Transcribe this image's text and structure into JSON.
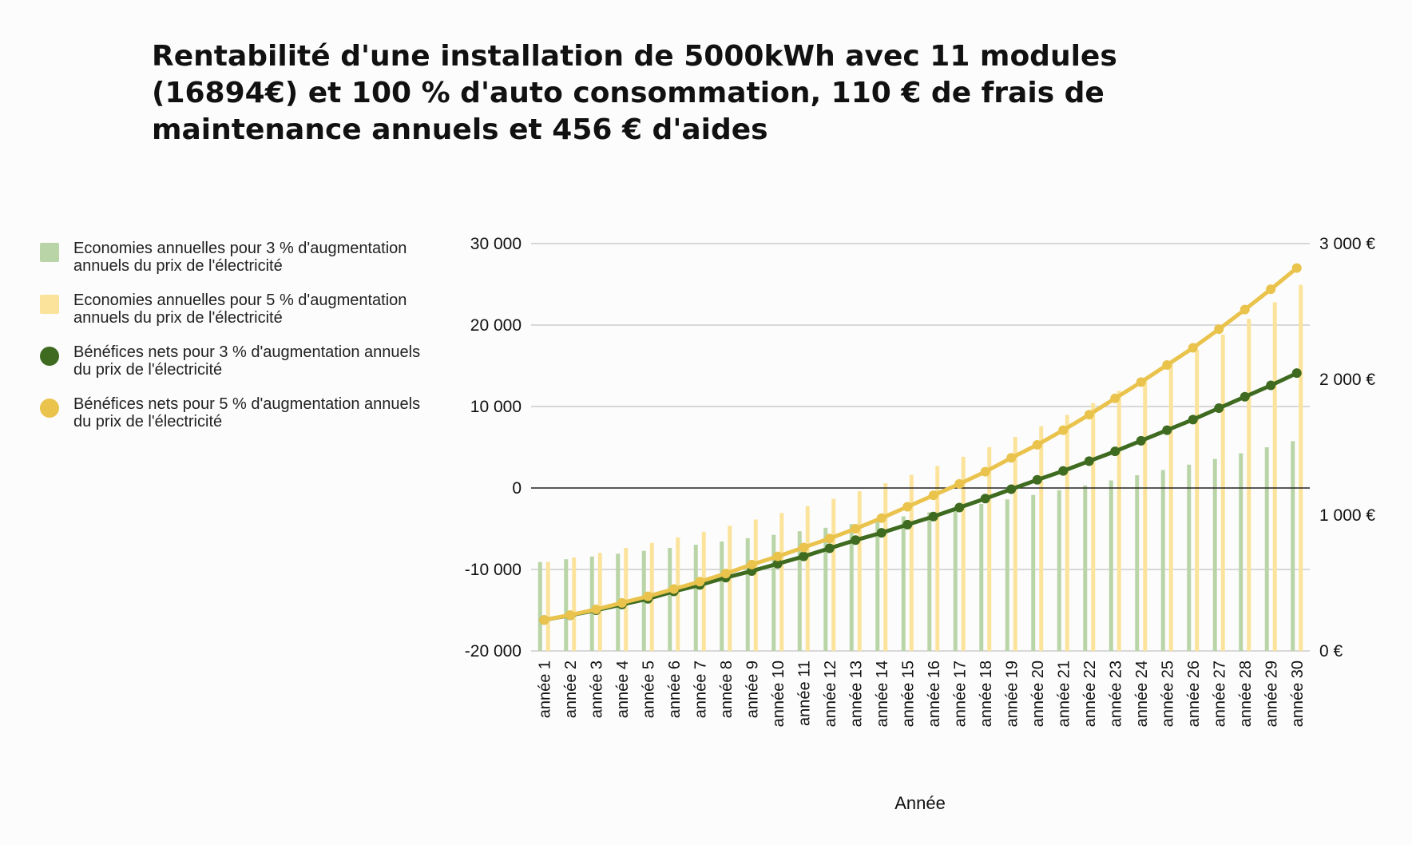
{
  "colors": {
    "bars_3": "#b9d5a7",
    "bars_5": "#fbe39c",
    "line_3": "#3e6b20",
    "line_5": "#e9c34c",
    "grid": "#c2c2c2",
    "zero": "#222222"
  },
  "chart_data": {
    "type": "bar+line",
    "title": "Rentabilité d'une installation de 5000kWh avec 11 modules (16894€) et 100 % d'auto consommation, 110 € de frais de maintenance annuels et 456 € d'aides",
    "xlabel": "Année",
    "ylabel": "",
    "y_left": {
      "range": [
        -20000,
        30000
      ],
      "ticks": [
        -20000,
        -10000,
        0,
        10000,
        20000,
        30000
      ],
      "tick_labels": [
        "-20 000",
        "-10 000",
        "0",
        "10 000",
        "20 000",
        "30 000"
      ]
    },
    "y_right": {
      "range": [
        0,
        3000
      ],
      "ticks": [
        0,
        1000,
        2000,
        3000
      ],
      "tick_labels": [
        "0 €",
        "1 000 €",
        "2 000 €",
        "3 000 €"
      ]
    },
    "grid": true,
    "legend_position": "left",
    "categories": [
      "année 1",
      "année 2",
      "année 3",
      "année 4",
      "année 5",
      "année 6",
      "année 7",
      "année 8",
      "année 9",
      "année 10",
      "année 11",
      "année 12",
      "année 13",
      "année 14",
      "année 15",
      "année 16",
      "année 17",
      "année 18",
      "année 19",
      "année 20",
      "année 21",
      "année 22",
      "année 23",
      "année 24",
      "année 25",
      "année 26",
      "année 27",
      "année 28",
      "année 29",
      "année 30"
    ],
    "series": [
      {
        "name": "Economies annuelles pour 3 % d'augmentation annuels du prix de l'électricité",
        "kind": "bar",
        "axis": "right",
        "values": [
          655,
          675,
          695,
          716,
          737,
          759,
          782,
          806,
          830,
          855,
          881,
          907,
          934,
          962,
          991,
          1021,
          1052,
          1083,
          1116,
          1149,
          1184,
          1219,
          1256,
          1294,
          1332,
          1372,
          1414,
          1456,
          1500,
          1545
        ]
      },
      {
        "name": "Economies annuelles pour 5 % d'augmentation annuels du prix de l'électricité",
        "kind": "bar",
        "axis": "right",
        "values": [
          655,
          688,
          722,
          758,
          796,
          836,
          878,
          922,
          968,
          1016,
          1067,
          1120,
          1176,
          1235,
          1297,
          1362,
          1430,
          1501,
          1576,
          1655,
          1738,
          1825,
          1916,
          2012,
          2113,
          2218,
          2329,
          2446,
          2568,
          2696
        ]
      },
      {
        "name": "Bénéfices nets pour 3 % d'augmentation annuels du prix de l'électricité",
        "kind": "line",
        "axis": "left",
        "values": [
          -16200,
          -15625,
          -15000,
          -14300,
          -13600,
          -12700,
          -11900,
          -11000,
          -10200,
          -9300,
          -8400,
          -7400,
          -6400,
          -5500,
          -4500,
          -3500,
          -2400,
          -1300,
          -150,
          1000,
          2100,
          3300,
          4500,
          5800,
          7100,
          8400,
          9800,
          11200,
          12600,
          14100
        ]
      },
      {
        "name": "Bénéfices nets pour 5 % d'augmentation annuels du prix de l'électricité",
        "kind": "line",
        "axis": "left",
        "values": [
          -16200,
          -15600,
          -14900,
          -14100,
          -13300,
          -12400,
          -11500,
          -10500,
          -9400,
          -8400,
          -7300,
          -6200,
          -5000,
          -3700,
          -2300,
          -900,
          500,
          2000,
          3700,
          5300,
          7100,
          9000,
          11000,
          13000,
          15100,
          17200,
          19500,
          21900,
          24400,
          27000
        ]
      }
    ]
  }
}
